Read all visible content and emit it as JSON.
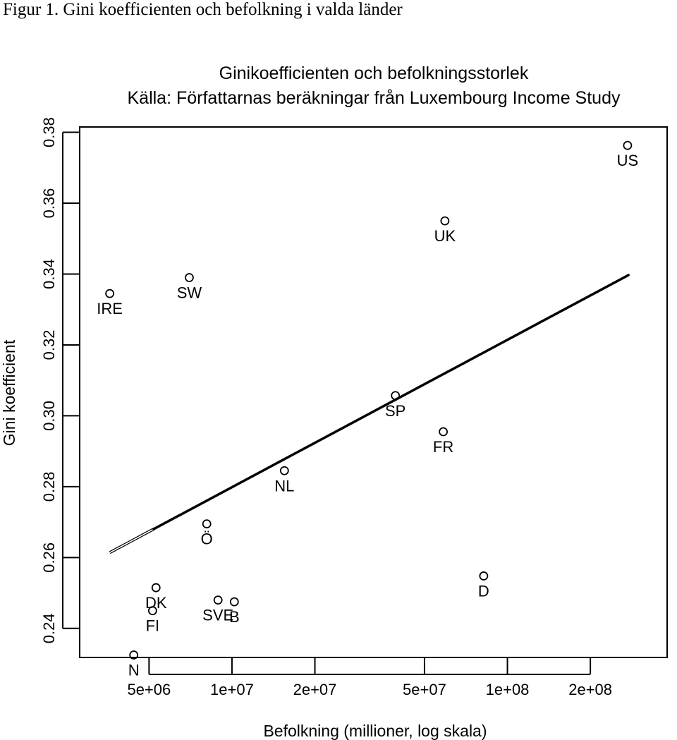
{
  "figure_caption": "Figur 1. Gini koefficienten och befolkning i valda länder",
  "chart_data": {
    "type": "scatter",
    "title": "Ginikoefficienten och befolkningsstorlek",
    "subtitle": "Källa: Författarnas beräkningar från Luxembourg Income Study",
    "xlabel": "Befolkning (millioner, log skala)",
    "ylabel": "Gini koefficient",
    "x_scale": "log",
    "xlim": [
      2800000,
      380000000
    ],
    "ylim": [
      0.2318,
      0.3815
    ],
    "x_ticks": [
      5000000,
      10000000,
      20000000,
      50000000,
      100000000,
      200000000
    ],
    "x_tick_labels": [
      "5e+06",
      "1e+07",
      "2e+07",
      "5e+07",
      "1e+08",
      "2e+08"
    ],
    "y_ticks": [
      0.24,
      0.26,
      0.28,
      0.3,
      0.32,
      0.34,
      0.36,
      0.38
    ],
    "y_tick_labels": [
      "0.24",
      "0.26",
      "0.28",
      "0.30",
      "0.32",
      "0.34",
      "0.36",
      "0.38"
    ],
    "grid": false,
    "points": [
      {
        "label": "IRE",
        "x": 3600000,
        "y": 0.3345
      },
      {
        "label": "SW",
        "x": 7000000,
        "y": 0.339
      },
      {
        "label": "N",
        "x": 4400000,
        "y": 0.2325
      },
      {
        "label": "DK",
        "x": 5300000,
        "y": 0.2515
      },
      {
        "label": "FI",
        "x": 5150000,
        "y": 0.245
      },
      {
        "label": "Ö",
        "x": 8100000,
        "y": 0.2695
      },
      {
        "label": "SVE",
        "x": 8900000,
        "y": 0.248
      },
      {
        "label": "B",
        "x": 10200000,
        "y": 0.2475
      },
      {
        "label": "NL",
        "x": 15500000,
        "y": 0.2845
      },
      {
        "label": "SP",
        "x": 39200000,
        "y": 0.3057
      },
      {
        "label": "FR",
        "x": 58500000,
        "y": 0.2955
      },
      {
        "label": "UK",
        "x": 59300000,
        "y": 0.355
      },
      {
        "label": "D",
        "x": 82000000,
        "y": 0.2548
      },
      {
        "label": "US",
        "x": 273000000,
        "y": 0.3763
      }
    ],
    "fit_line": {
      "x_start": 3600000,
      "y_start": 0.2614,
      "x_end": 275000000,
      "y_end": 0.3397,
      "thick_from_x": 5200000
    }
  }
}
